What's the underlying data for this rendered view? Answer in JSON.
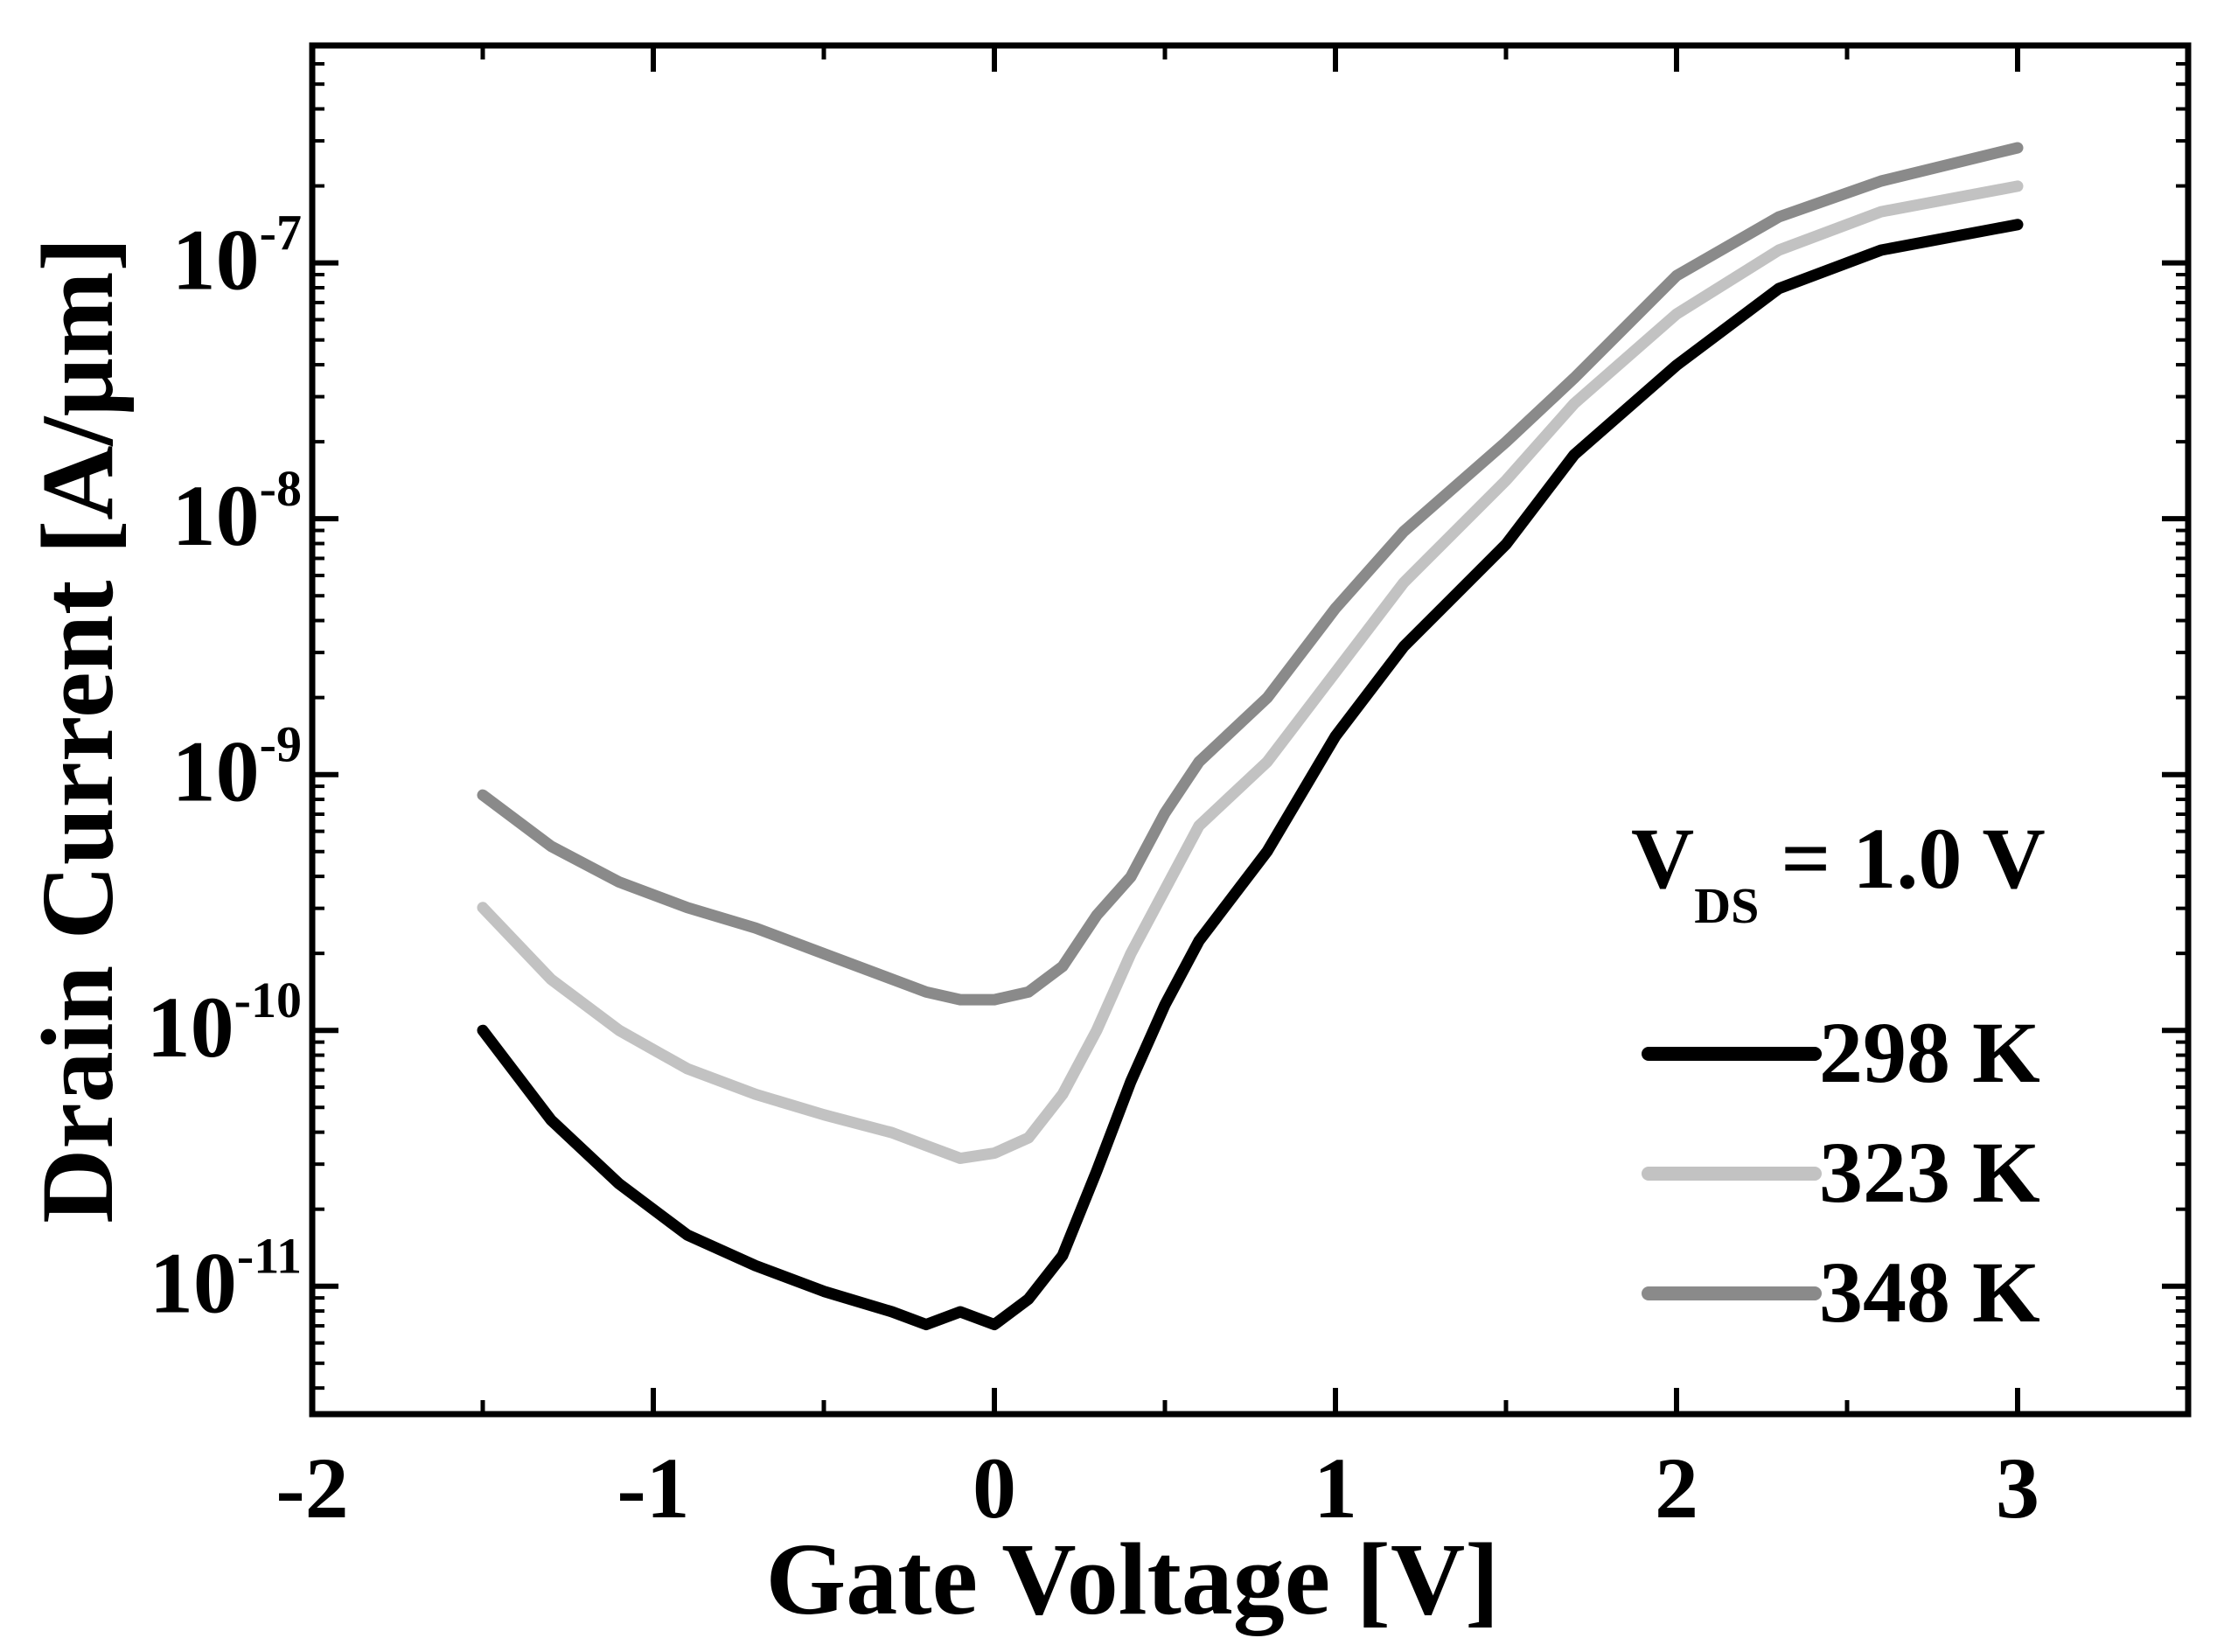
{
  "chart_data": {
    "type": "line",
    "title": "",
    "xlabel": "Gate Voltage [V]",
    "ylabel": "Drain Current [A/µm]",
    "xlim": [
      -2,
      3.5
    ],
    "ylim_log10": [
      -11.5,
      -6.15
    ],
    "x_ticks": [
      -2,
      -1,
      0,
      1,
      2,
      3
    ],
    "x_tick_labels": [
      "-2",
      "-1",
      "0",
      "1",
      "2",
      "3"
    ],
    "y_ticks": [
      {
        "value": -11,
        "base": "10",
        "exp": "-11"
      },
      {
        "value": -10,
        "base": "10",
        "exp": "-10"
      },
      {
        "value": -9,
        "base": "10",
        "exp": "-9"
      },
      {
        "value": -8,
        "base": "10",
        "exp": "-8"
      },
      {
        "value": -7,
        "base": "10",
        "exp": "-7"
      }
    ],
    "annotation": {
      "main": "V",
      "sub": "DS",
      "rest": " = 1.0 V"
    },
    "x": [
      -1.5,
      -1.3,
      -1.1,
      -0.9,
      -0.7,
      -0.5,
      -0.3,
      -0.2,
      -0.1,
      0.0,
      0.1,
      0.2,
      0.3,
      0.4,
      0.5,
      0.6,
      0.8,
      1.0,
      1.2,
      1.5,
      1.7,
      2.0,
      2.3,
      2.6,
      3.0
    ],
    "series": [
      {
        "name": "298 K",
        "color": "#000000",
        "log_values": [
          -10.0,
          -10.35,
          -10.6,
          -10.8,
          -10.92,
          -11.02,
          -11.1,
          -11.15,
          -11.1,
          -11.15,
          -11.05,
          -10.88,
          -10.55,
          -10.2,
          -9.9,
          -9.65,
          -9.3,
          -8.85,
          -8.5,
          -8.1,
          -7.75,
          -7.4,
          -7.1,
          -6.95,
          -6.85
        ],
        "legend_label": "298 K"
      },
      {
        "name": "323 K",
        "color": "#c2c2c2",
        "log_values": [
          -9.52,
          -9.8,
          -10.0,
          -10.15,
          -10.25,
          -10.33,
          -10.4,
          -10.45,
          -10.5,
          -10.48,
          -10.42,
          -10.25,
          -10.0,
          -9.7,
          -9.45,
          -9.2,
          -8.95,
          -8.6,
          -8.25,
          -7.85,
          -7.55,
          -7.2,
          -6.95,
          -6.8,
          -6.7
        ]
      },
      {
        "name": "348 K",
        "color": "#8a8a8a",
        "log_values": [
          -9.08,
          -9.28,
          -9.42,
          -9.52,
          -9.6,
          -9.7,
          -9.8,
          -9.85,
          -9.88,
          -9.88,
          -9.85,
          -9.75,
          -9.55,
          -9.4,
          -9.15,
          -8.95,
          -8.7,
          -8.35,
          -8.05,
          -7.7,
          -7.45,
          -7.05,
          -6.82,
          -6.68,
          -6.55
        ]
      }
    ],
    "legend_labels": [
      "298 K",
      "323 K",
      "348 K"
    ],
    "legend_position": "lower-right"
  }
}
